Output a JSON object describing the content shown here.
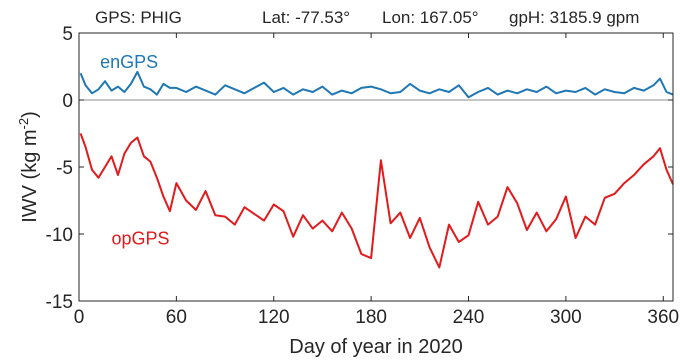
{
  "chart_data": {
    "type": "line",
    "title": {
      "gps": "GPS: PHIG",
      "lat": "Lat: -77.53°",
      "lon": "Lon: 167.05°",
      "gph": "gpH: 3185.9 gpm"
    },
    "xlabel": "Day of year in 2020",
    "ylabel_main": "IWV (kg m",
    "ylabel_sup": "-2",
    "ylabel_close": ")",
    "xlim": [
      0,
      366
    ],
    "ylim": [
      -15,
      5
    ],
    "xticks": [
      0,
      60,
      120,
      180,
      240,
      300,
      360
    ],
    "yticks": [
      -15,
      -10,
      -5,
      0,
      5
    ],
    "zero_line": true,
    "grid": false,
    "series": [
      {
        "name": "enGPS",
        "color": "#1f77b4",
        "x": [
          1,
          4,
          8,
          12,
          16,
          20,
          24,
          28,
          32,
          36,
          40,
          44,
          48,
          52,
          56,
          60,
          66,
          72,
          78,
          84,
          90,
          96,
          102,
          108,
          114,
          120,
          126,
          132,
          138,
          144,
          150,
          156,
          162,
          168,
          174,
          180,
          186,
          192,
          198,
          204,
          210,
          216,
          222,
          228,
          234,
          240,
          246,
          252,
          258,
          264,
          270,
          276,
          282,
          288,
          294,
          300,
          306,
          312,
          318,
          324,
          330,
          336,
          342,
          348,
          354,
          358,
          362,
          366
        ],
        "y": [
          2.0,
          1.1,
          0.5,
          0.8,
          1.4,
          0.7,
          1.0,
          0.6,
          1.2,
          2.1,
          1.0,
          0.8,
          0.4,
          1.2,
          0.9,
          0.9,
          0.6,
          1.0,
          0.7,
          0.4,
          1.1,
          0.8,
          0.5,
          0.9,
          1.3,
          0.6,
          0.9,
          0.4,
          0.8,
          0.6,
          1.0,
          0.4,
          0.7,
          0.5,
          0.9,
          1.0,
          0.8,
          0.5,
          0.6,
          1.2,
          0.7,
          0.5,
          0.8,
          0.6,
          1.1,
          0.2,
          0.6,
          0.9,
          0.4,
          0.7,
          0.5,
          0.8,
          0.6,
          1.0,
          0.5,
          0.7,
          0.6,
          0.9,
          0.4,
          0.8,
          0.6,
          0.5,
          0.9,
          0.7,
          1.1,
          1.6,
          0.6,
          0.4
        ]
      },
      {
        "name": "opGPS",
        "color": "#e31a1c",
        "x": [
          1,
          4,
          8,
          12,
          16,
          20,
          24,
          28,
          32,
          36,
          40,
          44,
          48,
          52,
          56,
          60,
          66,
          72,
          78,
          84,
          90,
          96,
          102,
          108,
          114,
          120,
          126,
          132,
          138,
          144,
          150,
          156,
          162,
          168,
          174,
          180,
          186,
          192,
          198,
          204,
          210,
          216,
          222,
          228,
          234,
          240,
          246,
          252,
          258,
          264,
          270,
          276,
          282,
          288,
          294,
          300,
          306,
          312,
          318,
          324,
          330,
          336,
          342,
          348,
          354,
          358,
          362,
          366
        ],
        "y": [
          -2.5,
          -3.5,
          -5.2,
          -5.8,
          -5.0,
          -4.2,
          -5.6,
          -4.0,
          -3.2,
          -2.8,
          -4.2,
          -4.6,
          -5.8,
          -7.2,
          -8.3,
          -6.2,
          -7.5,
          -8.2,
          -6.8,
          -8.6,
          -8.7,
          -9.3,
          -8.0,
          -8.5,
          -9.0,
          -7.8,
          -8.3,
          -10.2,
          -8.6,
          -9.6,
          -9.0,
          -9.8,
          -8.4,
          -9.6,
          -11.5,
          -11.8,
          -4.5,
          -9.2,
          -8.4,
          -10.3,
          -8.8,
          -11.0,
          -12.5,
          -9.3,
          -10.6,
          -10.1,
          -7.6,
          -9.3,
          -8.7,
          -6.5,
          -7.7,
          -9.7,
          -8.4,
          -9.8,
          -8.9,
          -7.2,
          -10.3,
          -8.7,
          -9.3,
          -7.3,
          -7.0,
          -6.2,
          -5.6,
          -4.8,
          -4.2,
          -3.6,
          -5.2,
          -6.3
        ]
      }
    ]
  }
}
